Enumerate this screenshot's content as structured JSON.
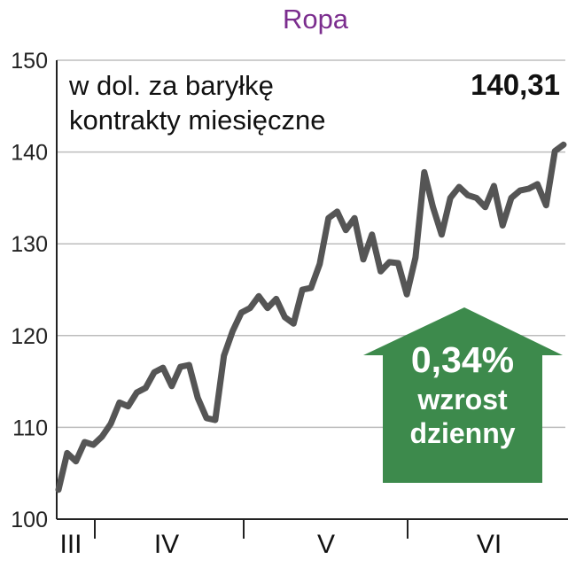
{
  "chart_data": {
    "type": "line",
    "title": "Ropa",
    "subtitle_lines": [
      "w dol. za baryłkę",
      "kontrakty miesięczne"
    ],
    "last_value_label": "140,31",
    "ylim": [
      100,
      150
    ],
    "yticks": [
      100,
      110,
      120,
      130,
      140,
      150
    ],
    "grid": true,
    "months": [
      "III",
      "IV",
      "V",
      "VI"
    ],
    "series": [
      {
        "color": "#555555",
        "values": [
          103.2,
          107.2,
          106.3,
          108.4,
          108.1,
          109.0,
          110.4,
          112.7,
          112.3,
          113.8,
          114.3,
          116.0,
          116.5,
          114.5,
          116.6,
          116.8,
          113.2,
          111.0,
          110.8,
          117.8,
          120.5,
          122.5,
          123.0,
          124.3,
          123.0,
          124.0,
          122.0,
          121.3,
          125.0,
          125.2,
          127.8,
          132.8,
          133.5,
          131.5,
          132.8,
          128.3,
          131.0,
          127.0,
          128.0,
          127.9,
          124.5,
          128.5,
          137.8,
          134.0,
          131.0,
          135.0,
          136.2,
          135.3,
          135.0,
          134.0,
          136.3,
          132.0,
          135.0,
          135.8,
          136.0,
          136.5,
          134.2,
          140.1,
          140.8
        ]
      }
    ],
    "annotation": {
      "value": "0,34%",
      "line1": "wzrost",
      "line2": "dzienny",
      "color": "#3d8a4c"
    }
  }
}
